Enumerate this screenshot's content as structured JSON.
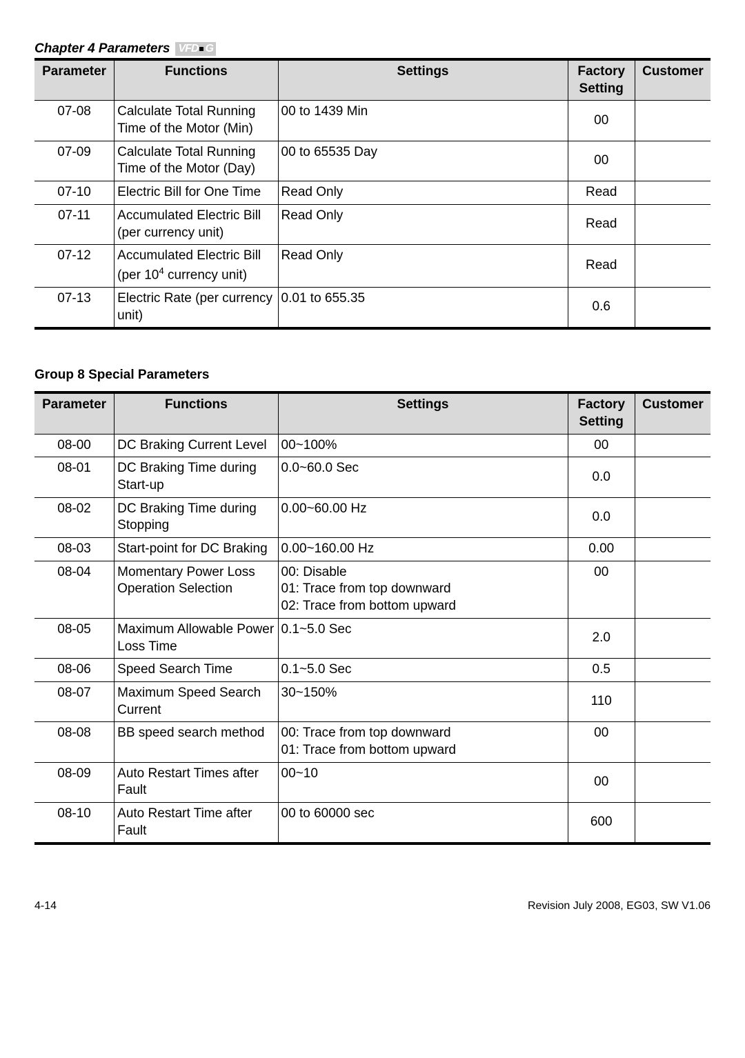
{
  "chapter_header": "Chapter 4  Parameters",
  "logo_text": "VFD-G",
  "columns": [
    "Parameter",
    "Functions",
    "Settings",
    "Factory Setting",
    "Customer"
  ],
  "table1": {
    "rows": [
      {
        "param": "07-08",
        "func": "Calculate Total Running Time of the Motor (Min)",
        "settings": "00 to 1439 Min",
        "factory": "00",
        "customer": ""
      },
      {
        "param": "07-09",
        "func": "Calculate Total Running Time of the Motor (Day)",
        "settings": "00 to 65535 Day",
        "factory": "00",
        "customer": ""
      },
      {
        "param": "07-10",
        "func": "Electric Bill for One Time",
        "settings": "Read Only",
        "factory": "Read",
        "customer": ""
      },
      {
        "param": "07-11",
        "func": "Accumulated Electric Bill (per currency unit)",
        "settings": "Read Only",
        "factory": "Read",
        "customer": ""
      },
      {
        "param": "07-12",
        "func_html": "Accumulated Electric Bill (per 10<sup>4</sup> currency unit)",
        "settings": "Read Only",
        "factory": "Read",
        "customer": ""
      },
      {
        "param": "07-13",
        "func": "Electric Rate (per currency unit)",
        "settings": "0.01 to 655.35",
        "factory": "0.6",
        "customer": ""
      }
    ]
  },
  "group8_title": "Group 8 Special Parameters",
  "table2": {
    "rows": [
      {
        "param": "08-00",
        "func": "DC Braking Current Level",
        "settings": "00~100%",
        "factory": "00",
        "customer": ""
      },
      {
        "param": "08-01",
        "func": "DC Braking Time during Start-up",
        "settings": "0.0~60.0 Sec",
        "factory": "0.0",
        "customer": ""
      },
      {
        "param": "08-02",
        "func": "DC Braking Time during Stopping",
        "settings": "0.00~60.00 Hz",
        "factory": "0.0",
        "customer": ""
      },
      {
        "param": "08-03",
        "func": "Start-point for DC Braking",
        "settings": "0.00~160.00 Hz",
        "factory": "0.00",
        "customer": ""
      },
      {
        "param": "08-04",
        "func": "Momentary Power Loss Operation Selection",
        "settings": "00: Disable\n01: Trace from top downward\n02: Trace from bottom upward",
        "factory": "00",
        "customer": "",
        "factory_valign": "top"
      },
      {
        "param": "08-05",
        "func": "Maximum Allowable Power Loss Time",
        "settings": "0.1~5.0 Sec",
        "factory": "2.0",
        "customer": ""
      },
      {
        "param": "08-06",
        "func": "Speed Search Time",
        "settings": "0.1~5.0 Sec",
        "factory": "0.5",
        "customer": ""
      },
      {
        "param": "08-07",
        "func": "Maximum Speed Search Current",
        "settings": "30~150%",
        "factory": "110",
        "customer": ""
      },
      {
        "param": "08-08",
        "func": "BB speed search method",
        "settings": "00: Trace from top downward\n01: Trace from bottom upward",
        "factory": "00",
        "customer": "",
        "factory_valign": "top"
      },
      {
        "param": "08-09",
        "func": "Auto Restart Times after Fault",
        "settings": "00~10",
        "factory": "00",
        "customer": ""
      },
      {
        "param": "08-10",
        "func": "Auto Restart Time after Fault",
        "settings": "00 to 60000 sec",
        "factory": "600",
        "customer": ""
      }
    ]
  },
  "footer_left": "4-14",
  "footer_right": "Revision July 2008, EG03, SW V1.06"
}
